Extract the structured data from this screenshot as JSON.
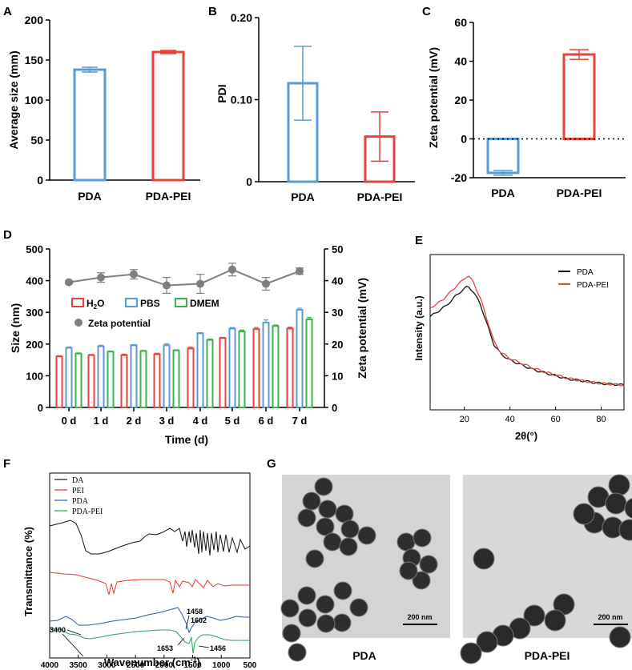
{
  "colors": {
    "blue": "#5b9bd5",
    "red": "#e8423f",
    "green": "#3cb44b",
    "gray": "#7f7f7f",
    "black": "#111111",
    "ftir_dark_blue": "#2b5ba8",
    "ftir_green": "#2ca05a",
    "ftir_red": "#e53935"
  },
  "chart_data": [
    {
      "panel": "A",
      "type": "bar",
      "categories": [
        "PDA",
        "PDA-PEI"
      ],
      "values": [
        138,
        160
      ],
      "errors": [
        3,
        2
      ],
      "ylabel": "Average size (mm)",
      "ylim": [
        0,
        200
      ],
      "yticks": [
        "0",
        "50",
        "100",
        "150",
        "200"
      ],
      "series_colors": [
        "#5b9bd5",
        "#e8423f"
      ]
    },
    {
      "panel": "B",
      "type": "bar",
      "categories": [
        "PDA",
        "PDA-PEI"
      ],
      "values": [
        0.12,
        0.055
      ],
      "errors": [
        0.045,
        0.03
      ],
      "ylabel": "PDI",
      "ylim": [
        0,
        0.2
      ],
      "yticks": [
        "0",
        "0.10",
        "0.20"
      ],
      "series_colors": [
        "#5b9bd5",
        "#e8423f"
      ]
    },
    {
      "panel": "C",
      "type": "bar",
      "categories": [
        "PDA",
        "PDA-PEI"
      ],
      "values": [
        -17.5,
        43.5
      ],
      "errors": [
        1.2,
        2.5
      ],
      "ylabel": "Zeta potential (mV)",
      "ylim": [
        -20,
        60
      ],
      "yticks": [
        "-20",
        "0",
        "20",
        "40",
        "60"
      ],
      "reference_line": "dotted at 0",
      "series_colors": [
        "#5b9bd5",
        "#e8423f"
      ]
    },
    {
      "panel": "D",
      "type": "bar",
      "categories": [
        "0 d",
        "1 d",
        "2 d",
        "3 d",
        "4 d",
        "5 d",
        "6 d",
        "7 d"
      ],
      "xlabel": "Time (d)",
      "ylabel": "Size (nm)",
      "ylim": [
        0,
        500
      ],
      "yticks": [
        "0",
        "100",
        "200",
        "300",
        "400",
        "500"
      ],
      "y2label": "Zeta potential (mV)",
      "y2lim": [
        0,
        50
      ],
      "y2ticks": [
        "0",
        "10",
        "20",
        "30",
        "40",
        "50"
      ],
      "series": [
        {
          "name": "H2O",
          "values": [
            161,
            165,
            165,
            168,
            186,
            219,
            247,
            249
          ],
          "errors": [
            2,
            2,
            3,
            3,
            4,
            2,
            5,
            4
          ],
          "color": "#e8423f"
        },
        {
          "name": "PBS",
          "values": [
            188,
            193,
            196,
            196,
            234,
            249,
            268,
            308
          ],
          "errors": [
            3,
            3,
            2,
            5,
            2,
            3,
            8,
            5
          ],
          "color": "#5b9bd5"
        },
        {
          "name": "DMEM",
          "values": [
            170,
            176,
            178,
            180,
            213,
            240,
            257,
            278
          ],
          "errors": [
            2,
            2,
            2,
            2,
            3,
            4,
            3,
            6
          ],
          "color": "#3cb44b"
        },
        {
          "name": "Zeta potential",
          "type": "line",
          "axis": "y2",
          "values": [
            39.5,
            41.0,
            42.0,
            38.5,
            39.0,
            43.5,
            39.0,
            43.0
          ],
          "errors": [
            0.5,
            1.5,
            1.5,
            2.5,
            3.0,
            2.0,
            2.0,
            1.0
          ],
          "color": "#7f7f7f"
        }
      ],
      "legend": {
        "h2o_main": "H",
        "h2o_sub": "2",
        "h2o_tail": "O",
        "pbs": "PBS",
        "dmem": "DMEM",
        "zeta": "Zeta potential"
      }
    },
    {
      "panel": "E",
      "type": "line",
      "xlabel": "2θ(°)",
      "ylabel": "Intensity (a.u.)",
      "xlim": [
        5,
        90
      ],
      "xticks": [
        "20",
        "40",
        "60",
        "80"
      ],
      "series": [
        {
          "name": "PDA",
          "color": "#111111",
          "x": [
            5,
            8,
            12,
            16,
            19,
            21,
            22,
            24,
            27,
            30,
            33,
            36,
            40,
            45,
            50,
            55,
            60,
            65,
            70,
            75,
            80,
            85,
            90
          ],
          "y": [
            0.6,
            0.63,
            0.67,
            0.73,
            0.77,
            0.79,
            0.79,
            0.76,
            0.68,
            0.55,
            0.42,
            0.36,
            0.32,
            0.29,
            0.26,
            0.24,
            0.22,
            0.2,
            0.19,
            0.18,
            0.17,
            0.165,
            0.16
          ]
        },
        {
          "name": "PDA-PEI",
          "color": "#e8423f",
          "x": [
            5,
            8,
            12,
            16,
            19,
            21,
            22,
            24,
            27,
            30,
            33,
            36,
            40,
            45,
            50,
            55,
            60,
            65,
            70,
            75,
            80,
            85,
            90
          ],
          "y": [
            0.66,
            0.68,
            0.73,
            0.79,
            0.83,
            0.86,
            0.86,
            0.82,
            0.72,
            0.58,
            0.44,
            0.37,
            0.33,
            0.3,
            0.27,
            0.245,
            0.225,
            0.205,
            0.19,
            0.18,
            0.17,
            0.165,
            0.16
          ]
        }
      ]
    },
    {
      "panel": "F",
      "type": "line",
      "xlabel": "Wavenumber (cm",
      "xlabel_sup": "-1",
      "xlabel_tail": ")",
      "ylabel": "Transmittance (%)",
      "xlim": [
        4000,
        500
      ],
      "xticks": [
        "4000",
        "3500",
        "3000",
        "2500",
        "2000",
        "1500",
        "1000",
        "500"
      ],
      "legend": [
        "DA",
        "PEI",
        "PDA",
        "PDA-PEI"
      ],
      "annotations": [
        "1458",
        "1602",
        "3400",
        "1653",
        "1456"
      ]
    }
  ],
  "panel_letters": [
    "A",
    "B",
    "C",
    "D",
    "E",
    "F",
    "G"
  ],
  "panel_g": {
    "images": [
      {
        "label": "PDA",
        "scale_bar": "200 nm"
      },
      {
        "label": "PDA-PEI",
        "scale_bar": "200 nm"
      }
    ]
  }
}
